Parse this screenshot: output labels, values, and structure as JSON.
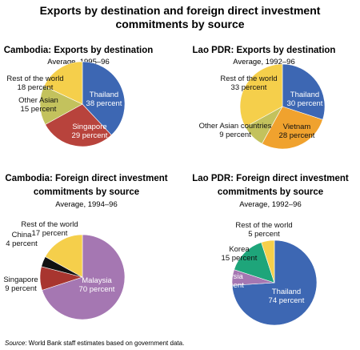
{
  "figure": {
    "title_line1": "Exports by destination and foreign direct investment",
    "title_line2": "commitments by source",
    "source_prefix": "Source",
    "source_text": ": World Bank staff estimates based on government data."
  },
  "chart_data": [
    {
      "type": "pie",
      "title_lines": [
        "Cambodia: Exports by destination"
      ],
      "subtitle": "Average, 1995–96",
      "slices": [
        {
          "name": "Thailand",
          "value": 38,
          "value_label": "38 percent",
          "color": "#3d67b3"
        },
        {
          "name": "Singapore",
          "value": 29,
          "value_label": "29 percent",
          "color": "#b8433c"
        },
        {
          "name": "Other Asian",
          "value": 15,
          "value_label": "15 percent",
          "color": "#c3c25d"
        },
        {
          "name": "Rest of the world",
          "value": 18,
          "value_label": "18 percent",
          "color": "#f5cf4b"
        }
      ]
    },
    {
      "type": "pie",
      "title_lines": [
        "Lao PDR: Exports by destination"
      ],
      "subtitle": "Average, 1992–96",
      "slices": [
        {
          "name": "Thailand",
          "value": 30,
          "value_label": "30 percent",
          "color": "#3d67b3"
        },
        {
          "name": "Vietnam",
          "value": 28,
          "value_label": "28 percent",
          "color": "#f0a22e"
        },
        {
          "name": "Other Asian countries",
          "value": 9,
          "value_label": "9 percent",
          "color": "#c3c25d"
        },
        {
          "name": "Rest of the world",
          "value": 33,
          "value_label": "33 percent",
          "color": "#f5cf4b"
        }
      ]
    },
    {
      "type": "pie",
      "title_lines": [
        "Cambodia: Foreign direct investment",
        "commitments by source"
      ],
      "subtitle": "Average, 1994–96",
      "slices": [
        {
          "name": "Malaysia",
          "value": 70,
          "value_label": "70 percent",
          "color": "#a577b2"
        },
        {
          "name": "Singapore",
          "value": 9,
          "value_label": "9 percent",
          "color": "#a8352f"
        },
        {
          "name": "China",
          "value": 4,
          "value_label": "4 percent",
          "color": "#111111"
        },
        {
          "name": "Rest of the world",
          "value": 17,
          "value_label": "17 percent",
          "color": "#f5cf4b"
        }
      ]
    },
    {
      "type": "pie",
      "title_lines": [
        "Lao PDR: Foreign direct investment",
        "commitments by source"
      ],
      "subtitle": "Average, 1992–96",
      "slices": [
        {
          "name": "Thailand",
          "value": 74,
          "value_label": "74 percent",
          "color": "#3d67b3"
        },
        {
          "name": "Malaysia",
          "value": 6,
          "value_label": "6 percent",
          "color": "#a577b2"
        },
        {
          "name": "Korea",
          "value": 15,
          "value_label": "15 percent",
          "color": "#1ea57a"
        },
        {
          "name": "Rest of the world",
          "value": 5,
          "value_label": "5 percent",
          "color": "#f5cf4b"
        }
      ]
    }
  ]
}
